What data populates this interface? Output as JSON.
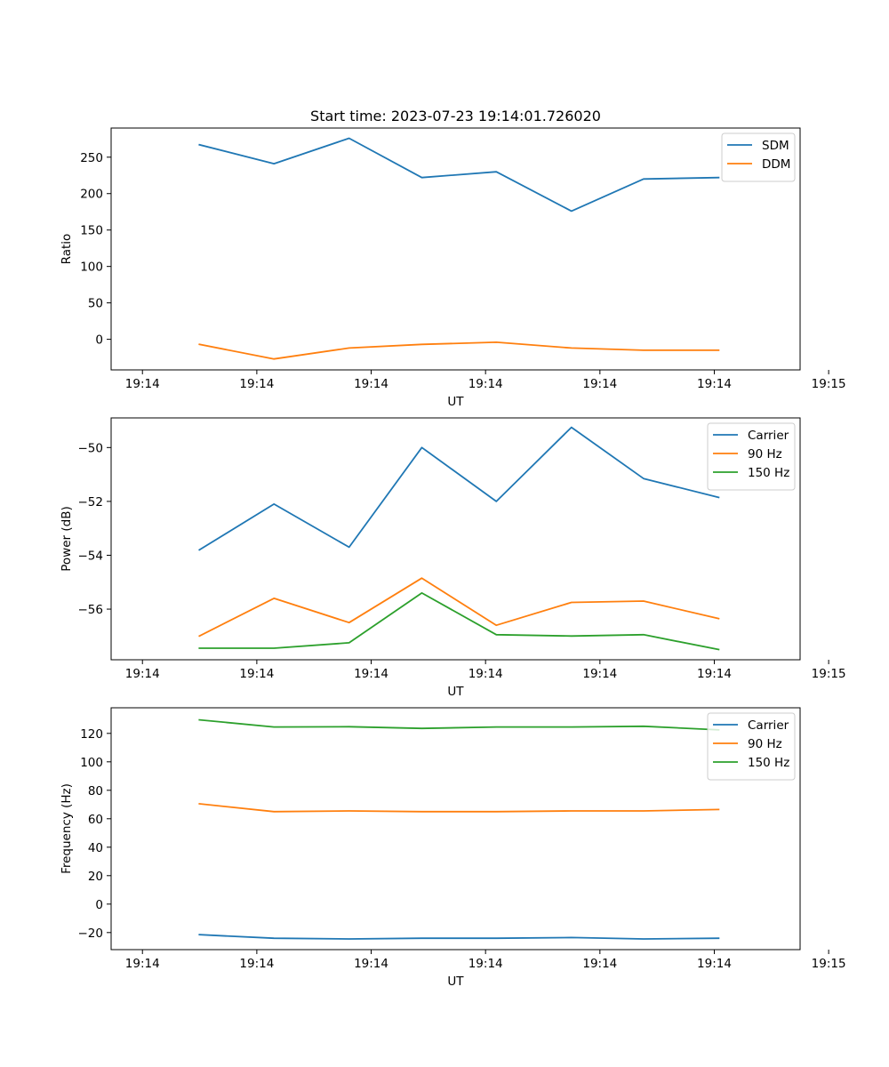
{
  "figure_title": "Start time: 2023-07-23 19:14:01.726020",
  "colors": {
    "blue": "#1f77b4",
    "orange": "#ff7f0e",
    "green": "#2ca02c"
  },
  "chart_data": [
    {
      "type": "line",
      "title": "Start time: 2023-07-23 19:14:01.726020",
      "xlabel": "UT",
      "ylabel": "Ratio",
      "legend_position": "top-right",
      "grid": false,
      "xlim": [
        -0.5,
        10.5
      ],
      "ylim": [
        -42,
        290
      ],
      "x_ticks": [
        0,
        1.826,
        3.652,
        5.478,
        7.304,
        9.13,
        10.956
      ],
      "x_tick_labels": [
        "19:14",
        "19:14",
        "19:14",
        "19:14",
        "19:14",
        "19:14",
        "19:15"
      ],
      "y_ticks": [
        0,
        50,
        100,
        150,
        200,
        250
      ],
      "y_tick_labels": [
        "0",
        "50",
        "100",
        "150",
        "200",
        "250"
      ],
      "x": [
        0.91,
        2.1,
        3.3,
        4.46,
        5.65,
        6.85,
        8.0,
        9.2
      ],
      "series": [
        {
          "name": "SDM",
          "color": "#1f77b4",
          "values": [
            267,
            241,
            276,
            222,
            230,
            176,
            220,
            222
          ]
        },
        {
          "name": "DDM",
          "color": "#ff7f0e",
          "values": [
            -7,
            -27,
            -12,
            -7,
            -4,
            -12,
            -15,
            -15
          ]
        }
      ]
    },
    {
      "type": "line",
      "title": "",
      "xlabel": "UT",
      "ylabel": "Power (dB)",
      "legend_position": "top-right",
      "grid": false,
      "xlim": [
        -0.5,
        10.5
      ],
      "ylim": [
        -57.88,
        -48.9
      ],
      "x_ticks": [
        0,
        1.826,
        3.652,
        5.478,
        7.304,
        9.13,
        10.956
      ],
      "x_tick_labels": [
        "19:14",
        "19:14",
        "19:14",
        "19:14",
        "19:14",
        "19:14",
        "19:15"
      ],
      "y_ticks": [
        -56,
        -54,
        -52,
        -50
      ],
      "y_tick_labels": [
        "−56",
        "−54",
        "−52",
        "−50"
      ],
      "x": [
        0.91,
        2.1,
        3.3,
        4.46,
        5.65,
        6.85,
        8.0,
        9.2
      ],
      "series": [
        {
          "name": "Carrier",
          "color": "#1f77b4",
          "values": [
            -53.8,
            -52.1,
            -53.7,
            -50.0,
            -52.0,
            -49.25,
            -51.15,
            -51.85
          ]
        },
        {
          "name": "90 Hz",
          "color": "#ff7f0e",
          "values": [
            -57.0,
            -55.6,
            -56.5,
            -54.85,
            -56.6,
            -55.75,
            -55.7,
            -56.35
          ]
        },
        {
          "name": "150 Hz",
          "color": "#2ca02c",
          "values": [
            -57.45,
            -57.45,
            -57.25,
            -55.4,
            -56.95,
            -57.0,
            -56.95,
            -57.5
          ]
        }
      ]
    },
    {
      "type": "line",
      "title": "",
      "xlabel": "UT",
      "ylabel": "Frequency (Hz)",
      "legend_position": "top-right",
      "grid": false,
      "xlim": [
        -0.5,
        10.5
      ],
      "ylim": [
        -32,
        138
      ],
      "x_ticks": [
        0,
        1.826,
        3.652,
        5.478,
        7.304,
        9.13,
        10.956
      ],
      "x_tick_labels": [
        "19:14",
        "19:14",
        "19:14",
        "19:14",
        "19:14",
        "19:14",
        "19:15"
      ],
      "y_ticks": [
        -20,
        0,
        20,
        40,
        60,
        80,
        100,
        120
      ],
      "y_tick_labels": [
        "−20",
        "0",
        "20",
        "40",
        "60",
        "80",
        "100",
        "120"
      ],
      "x": [
        0.91,
        2.1,
        3.3,
        4.46,
        5.65,
        6.85,
        8.0,
        9.2
      ],
      "series": [
        {
          "name": "Carrier",
          "color": "#1f77b4",
          "values": [
            -21.5,
            -24,
            -24.5,
            -24,
            -24,
            -23.5,
            -24.5,
            -24
          ]
        },
        {
          "name": "90 Hz",
          "color": "#ff7f0e",
          "values": [
            70.5,
            65,
            65.5,
            65,
            65,
            65.5,
            65.5,
            66.5
          ]
        },
        {
          "name": "150 Hz",
          "color": "#2ca02c",
          "values": [
            129.5,
            124.5,
            124.7,
            123.5,
            124.5,
            124.5,
            125,
            122.5
          ]
        }
      ]
    }
  ]
}
